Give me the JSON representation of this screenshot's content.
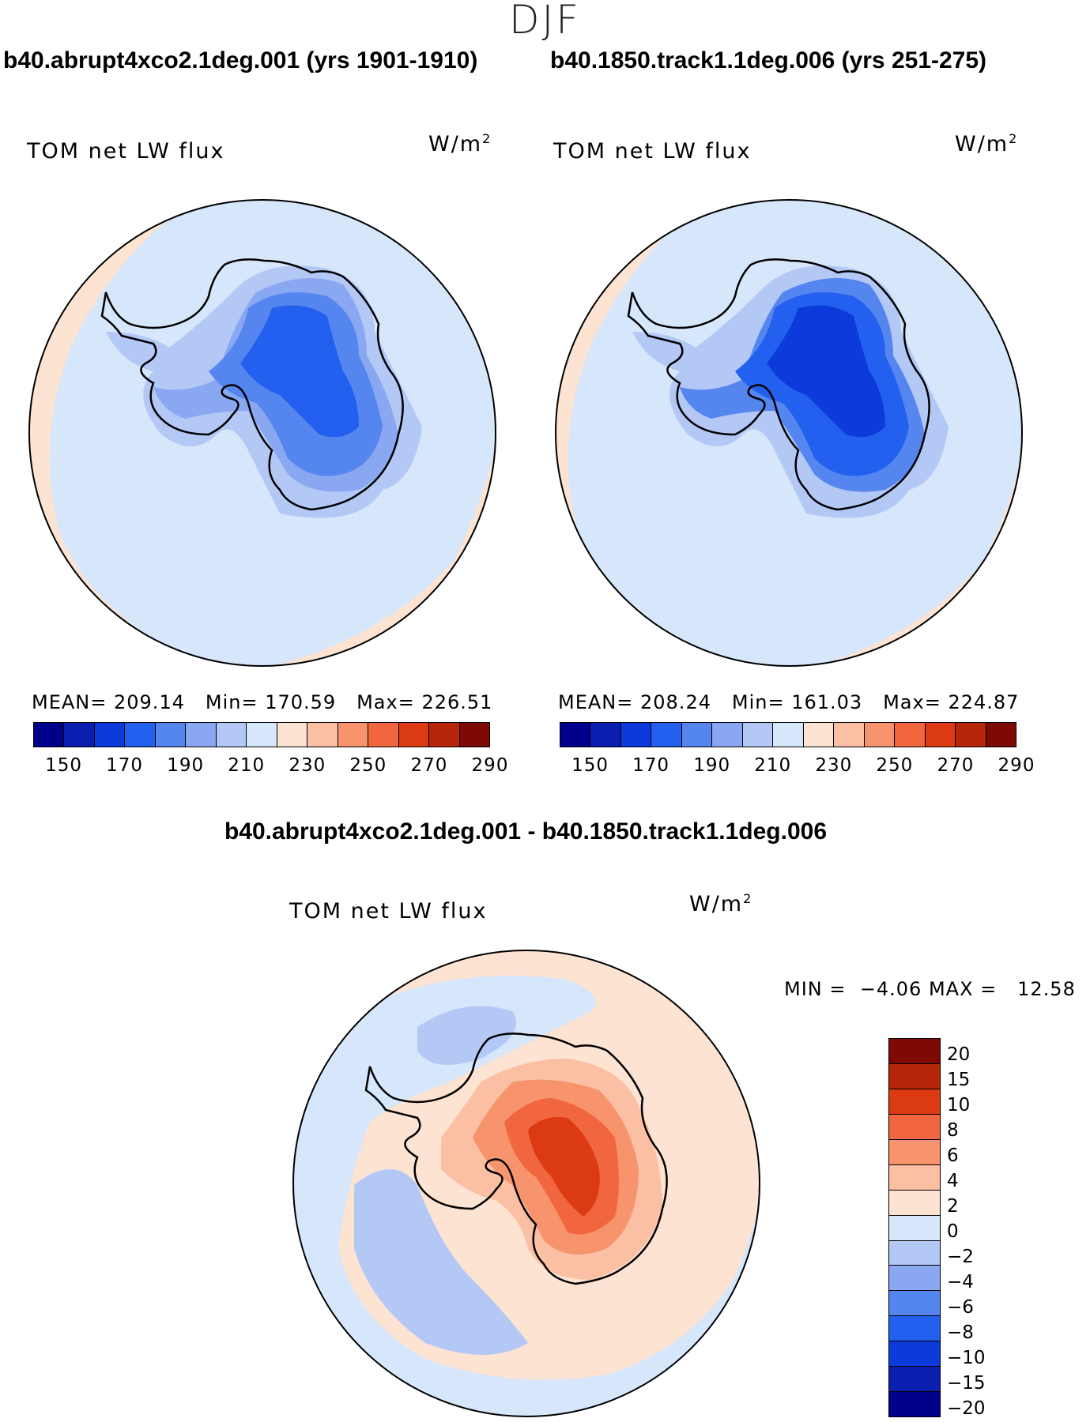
{
  "season": "DJF",
  "panels": [
    {
      "case_title": "b40.abrupt4xco2.1deg.001 (yrs 1901-1910)",
      "variable": "TOM net LW flux",
      "units": "W/m",
      "units_sup": "2",
      "mean_label": "MEAN=",
      "mean_value": "209.14",
      "min_label": "Min=",
      "min_value": "170.59",
      "max_label": "Max=",
      "max_value": "226.51"
    },
    {
      "case_title": "b40.1850.track1.1deg.006 (yrs 251-275)",
      "variable": "TOM net LW flux",
      "units": "W/m",
      "units_sup": "2",
      "mean_label": "MEAN=",
      "mean_value": "208.24",
      "min_label": "Min=",
      "min_value": "161.03",
      "max_label": "Max=",
      "max_value": "224.87"
    }
  ],
  "difference": {
    "title": "b40.abrupt4xco2.1deg.001 - b40.1850.track1.1deg.006",
    "variable": "TOM net LW flux",
    "units": "W/m",
    "units_sup": "2",
    "min_label": "MIN =",
    "min_value": "−4.06",
    "max_label": "MAX =",
    "max_value": "12.58"
  },
  "abs_colorbar": {
    "colors": [
      "#00008b",
      "#0a1fb0",
      "#0d3bdb",
      "#2360ef",
      "#5585ee",
      "#8aa8f1",
      "#b4c8f6",
      "#d6e6fb",
      "#fde3d2",
      "#fbbfa3",
      "#f7936d",
      "#f1663f",
      "#dc3a12",
      "#b5260a",
      "#7e0a05"
    ],
    "tick_labels": [
      "150",
      "170",
      "190",
      "210",
      "230",
      "250",
      "270",
      "290"
    ]
  },
  "diff_colorbar": {
    "colors": [
      "#7e0a05",
      "#b5260a",
      "#dc3a12",
      "#f1663f",
      "#f7936d",
      "#fbbfa3",
      "#fde3d2",
      "#d6e6fb",
      "#b4c8f6",
      "#8aa8f1",
      "#5585ee",
      "#2360ef",
      "#0d3bdb",
      "#0a1fb0",
      "#00008b"
    ],
    "tick_labels": [
      "20",
      "15",
      "10",
      "8",
      "6",
      "4",
      "2",
      "0",
      "−2",
      "−4",
      "−6",
      "−8",
      "−10",
      "−15",
      "−20"
    ]
  }
}
